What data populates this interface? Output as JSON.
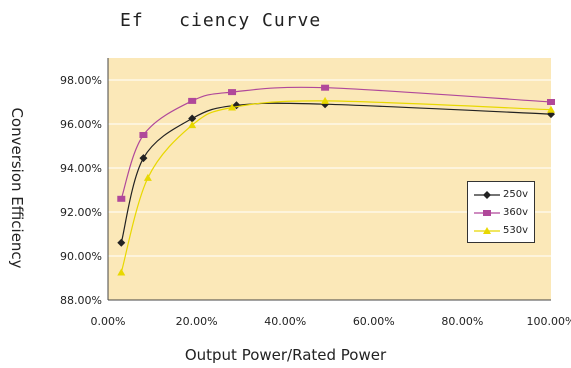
{
  "chart_data": {
    "type": "line",
    "title": "Ef   ciency Curve",
    "xlabel": "Output Power/Rated Power",
    "ylabel": "Conversion Efficiency",
    "x_ticks": [
      "0.00%",
      "20.00%",
      "40.00%",
      "60.00%",
      "80.00%",
      "100.00%"
    ],
    "y_ticks": [
      "88.00%",
      "90.00%",
      "92.00%",
      "94.00%",
      "96.00%",
      "98.00%"
    ],
    "xlim": [
      0,
      100
    ],
    "ylim": [
      88,
      99
    ],
    "grid": "horizontal",
    "legend_position": "right",
    "plot_background": "#fbe8b8",
    "series": [
      {
        "name": "250v",
        "color": "#222222",
        "marker": "diamond",
        "x": [
          3,
          8,
          19,
          29,
          49,
          100
        ],
        "y": [
          90.6,
          94.45,
          96.25,
          96.85,
          96.9,
          96.45
        ]
      },
      {
        "name": "360v",
        "color": "#b0489a",
        "marker": "square",
        "x": [
          3,
          8,
          19,
          28,
          49,
          100
        ],
        "y": [
          92.6,
          95.5,
          97.05,
          97.45,
          97.65,
          97.0
        ]
      },
      {
        "name": "530v",
        "color": "#e8d800",
        "marker": "triangle",
        "x": [
          3,
          9,
          19,
          28,
          49,
          100
        ],
        "y": [
          89.25,
          93.55,
          95.95,
          96.75,
          97.05,
          96.65
        ]
      }
    ]
  }
}
